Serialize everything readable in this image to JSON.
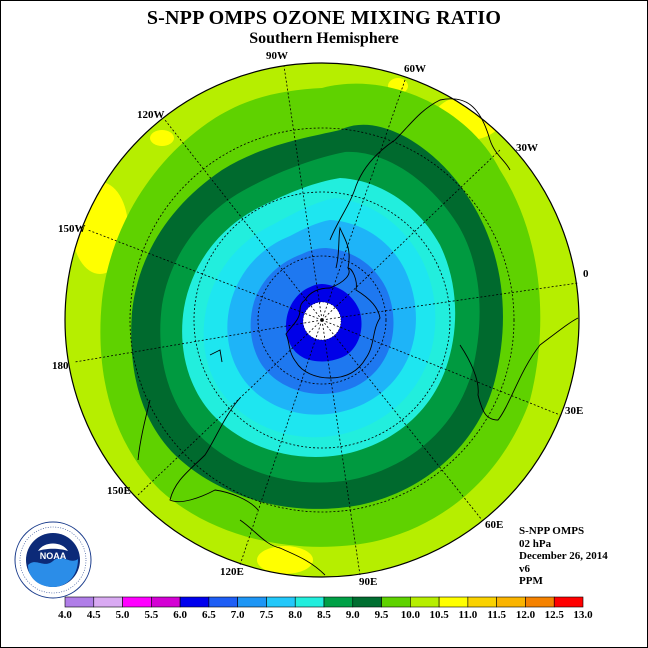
{
  "title": "S-NPP OMPS OZONE MIXING RATIO",
  "subtitle": "Southern Hemisphere",
  "longitude_labels": {
    "l90w": "90W",
    "l60w": "60W",
    "l120w": "120W",
    "l30w": "30W",
    "l150w": "150W",
    "l0": "0",
    "l180": "180",
    "l30e": "30E",
    "l150e": "150E",
    "l60e": "60E",
    "l120e": "120E",
    "l90e": "90E"
  },
  "info": {
    "instrument": "S-NPP OMPS",
    "level": "02 hPa",
    "date": "December 26, 2014",
    "version": "v6",
    "units": "PPM"
  },
  "colorbar": {
    "labels": [
      "4.0",
      "4.5",
      "5.0",
      "5.5",
      "6.0",
      "6.5",
      "7.0",
      "7.5",
      "8.0",
      "8.5",
      "9.0",
      "9.5",
      "10.0",
      "10.5",
      "11.0",
      "11.5",
      "12.0",
      "12.5",
      "13.0"
    ],
    "colors": [
      "#b07ee8",
      "#d9aaf2",
      "#ff00ff",
      "#d400d4",
      "#0000ee",
      "#1e5ef5",
      "#1e96f5",
      "#23c8fa",
      "#22eedd",
      "#00a046",
      "#006e30",
      "#5fd200",
      "#b6ee00",
      "#ffff00",
      "#fad200",
      "#fab400",
      "#f58200",
      "#ff0000",
      "#8b5a3c"
    ]
  },
  "colors": {
    "c_6_5": "#1e78f0",
    "c_7_0": "#1eb4f8",
    "c_7_5": "#1ee6f0",
    "c_8_0": "#22eedd",
    "c_8_5": "#009a40",
    "c_9_0": "#006a2e",
    "c_9_5": "#5fd200",
    "c_10_0": "#b6ee00",
    "c_10_5": "#ffff00",
    "c_6_0": "#0000e8"
  },
  "logo_text": "NOAA",
  "logo_ring_text": "NATIONAL OCEANIC AND ATMOSPHERIC ADMINISTRATION · U.S. DEPARTMENT OF COMMERCE"
}
